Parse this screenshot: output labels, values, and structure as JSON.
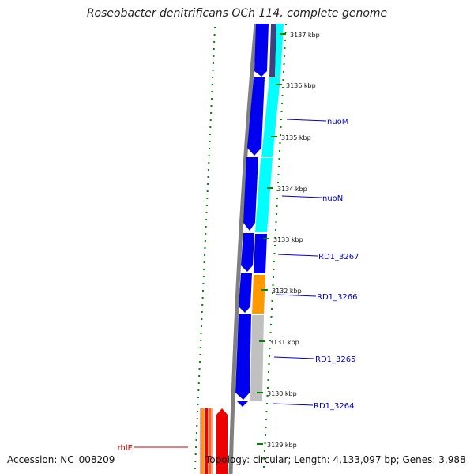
{
  "title": "Roseobacter denitrificans OCh 114, complete genome",
  "accession": "Accession: NC_008209",
  "topology": "Topology: circular; Length: 4,133,097 bp; Genes: 3,988",
  "ticks": [
    "3137 kbp",
    "3136 kbp",
    "3135 kbp",
    "3134 kbp",
    "3133 kbp",
    "3132 kbp",
    "3131 kbp",
    "3130 kbp",
    "3129 kbp"
  ],
  "gene_labels": [
    "nuoM",
    "nuoN",
    "RD1_3267",
    "RD1_3266",
    "RD1_3265",
    "RD1_3264",
    "rhlE"
  ],
  "colors": {
    "backbone": "#808080",
    "gene_forward": "#0000ee",
    "gene_cyan": "#00ffff",
    "gene_orange": "#ff9900",
    "gene_gray": "#c0c0c0",
    "gene_red": "#ee0000",
    "gc_skew": "#008800",
    "label_line": "#0000cc",
    "rhlE_label": "#cc0000"
  }
}
